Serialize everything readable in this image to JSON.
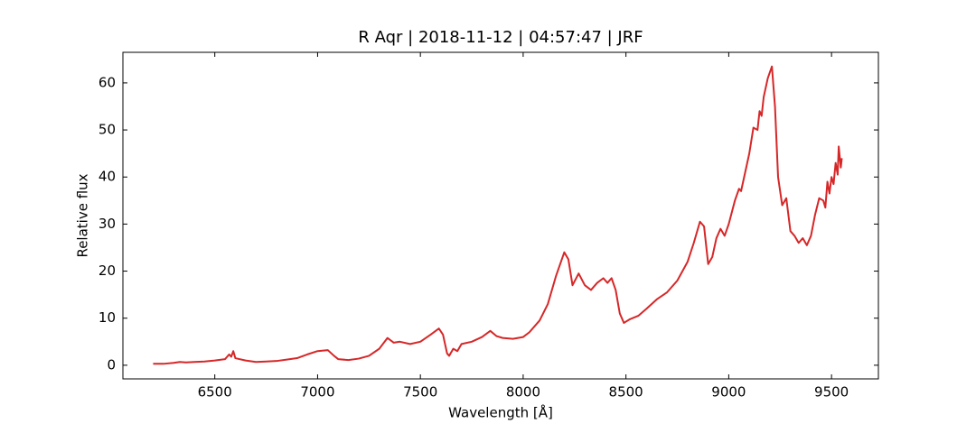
{
  "chart_data": {
    "type": "line",
    "title": "R Aqr | 2018-11-12 | 04:57:47 | JRF",
    "x_label": "Wavelength [Å]",
    "y_label": "Relative flux",
    "color": "#d62728",
    "x": [
      6200,
      6250,
      6300,
      6330,
      6360,
      6400,
      6450,
      6500,
      6550,
      6570,
      6580,
      6590,
      6600,
      6650,
      6700,
      6750,
      6800,
      6850,
      6900,
      6950,
      7000,
      7050,
      7080,
      7100,
      7150,
      7200,
      7250,
      7300,
      7340,
      7370,
      7400,
      7450,
      7500,
      7550,
      7590,
      7610,
      7630,
      7640,
      7660,
      7680,
      7700,
      7750,
      7800,
      7840,
      7870,
      7900,
      7950,
      8000,
      8030,
      8080,
      8120,
      8160,
      8200,
      8220,
      8240,
      8270,
      8300,
      8330,
      8360,
      8390,
      8410,
      8430,
      8450,
      8470,
      8490,
      8520,
      8560,
      8600,
      8650,
      8700,
      8750,
      8800,
      8830,
      8860,
      8880,
      8900,
      8920,
      8940,
      8960,
      8980,
      9000,
      9030,
      9050,
      9060,
      9080,
      9100,
      9120,
      9140,
      9150,
      9160,
      9170,
      9190,
      9210,
      9225,
      9240,
      9260,
      9280,
      9300,
      9320,
      9340,
      9360,
      9380,
      9400,
      9420,
      9440,
      9460,
      9470,
      9480,
      9490,
      9500,
      9510,
      9520,
      9530,
      9535,
      9545,
      9550
    ],
    "values": [
      0.3,
      0.3,
      0.5,
      0.7,
      0.6,
      0.7,
      0.8,
      1.0,
      1.3,
      2.3,
      1.8,
      3.0,
      1.5,
      1.0,
      0.7,
      0.8,
      0.9,
      1.2,
      1.5,
      2.3,
      3.0,
      3.2,
      2.0,
      1.3,
      1.1,
      1.4,
      2.0,
      3.5,
      5.8,
      4.8,
      5.0,
      4.5,
      5.0,
      6.5,
      7.8,
      6.5,
      2.5,
      2.0,
      3.5,
      3.0,
      4.5,
      5.0,
      6.0,
      7.3,
      6.2,
      5.8,
      5.6,
      6.0,
      7.0,
      9.5,
      13,
      19,
      24,
      22.5,
      17,
      19.5,
      17,
      16,
      17.5,
      18.5,
      17.5,
      18.5,
      16,
      11,
      9,
      9.8,
      10.5,
      12,
      14,
      15.5,
      18,
      22,
      26,
      30.5,
      29.5,
      21.5,
      23,
      27,
      29,
      27.5,
      30,
      35,
      37.5,
      37,
      41,
      45,
      50.5,
      50,
      54,
      53,
      57,
      61,
      63.5,
      55,
      40,
      34,
      35.5,
      28.5,
      27.5,
      26,
      27,
      25.5,
      27.5,
      32,
      35.5,
      35,
      33.5,
      39,
      36.5,
      40,
      38.5,
      43,
      40.5,
      46.5,
      42,
      44
    ],
    "xlim": [
      6053,
      9728
    ],
    "ylim": [
      -2.9,
      66.5
    ],
    "xticks": [
      6500,
      7000,
      7500,
      8000,
      8500,
      9000,
      9500
    ],
    "yticks": [
      0,
      10,
      20,
      30,
      40,
      50,
      60
    ]
  }
}
